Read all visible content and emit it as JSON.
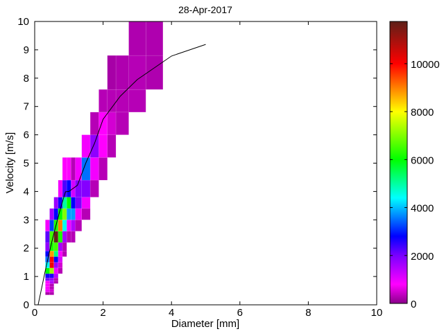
{
  "chart_data": {
    "type": "heatmap",
    "title": "28-Apr-2017",
    "xlabel": "Diameter [mm]",
    "ylabel": "Velocity [m/s]",
    "xlim": [
      0,
      10
    ],
    "ylim": [
      0,
      10
    ],
    "xticks": [
      0,
      2,
      4,
      6,
      8,
      10
    ],
    "yticks": [
      0,
      1,
      2,
      3,
      4,
      5,
      6,
      7,
      8,
      9,
      10
    ],
    "grid": false,
    "colorbar": {
      "location": "right",
      "range": [
        0,
        11760
      ],
      "ticks": [
        0,
        2000,
        4000,
        6000,
        8000,
        10000
      ],
      "colormap_stops": [
        [
          0,
          "#8a008a"
        ],
        [
          800,
          "#ff00ff"
        ],
        [
          2000,
          "#7a00ff"
        ],
        [
          2800,
          "#0000ff"
        ],
        [
          4400,
          "#00ffff"
        ],
        [
          6000,
          "#00ff00"
        ],
        [
          8000,
          "#ffff00"
        ],
        [
          9000,
          "#ff8000"
        ],
        [
          10000,
          "#ff0000"
        ],
        [
          11760,
          "#5e2018"
        ]
      ]
    },
    "diameter_edges": [
      0.312,
      0.437,
      0.562,
      0.687,
      0.812,
      0.937,
      1.062,
      1.187,
      1.375,
      1.625,
      1.875,
      2.125,
      2.375,
      2.75,
      3.25,
      3.75
    ],
    "velocity_edges": [
      0.35,
      0.45,
      0.55,
      0.65,
      0.75,
      0.85,
      0.95,
      1.1,
      1.3,
      1.5,
      1.7,
      1.9,
      2.2,
      2.6,
      3.0,
      3.4,
      3.8,
      4.4,
      5.2,
      6.0,
      6.8,
      7.6,
      8.8,
      10.4
    ],
    "rows": [
      {
        "v": 0.35,
        "d_start": 0.312,
        "counts": [
          200,
          250
        ]
      },
      {
        "v": 0.45,
        "d_start": 0.312,
        "counts": [
          900,
          500
        ]
      },
      {
        "v": 0.55,
        "d_start": 0.312,
        "counts": [
          800,
          300
        ]
      },
      {
        "v": 0.65,
        "d_start": 0.312,
        "counts": [
          800,
          300
        ]
      },
      {
        "v": 0.75,
        "d_start": 0.312,
        "counts": [
          800,
          1500,
          250
        ]
      },
      {
        "v": 0.85,
        "d_start": 0.312,
        "counts": [
          2000,
          1700,
          300
        ]
      },
      {
        "v": 0.95,
        "d_start": 0.312,
        "counts": [
          2700,
          2600,
          1400
        ]
      },
      {
        "v": 1.1,
        "d_start": 0.312,
        "counts": [
          6000,
          7200,
          900,
          300
        ]
      },
      {
        "v": 1.3,
        "d_start": 0.312,
        "counts": [
          4400,
          10200,
          1700,
          500
        ]
      },
      {
        "v": 1.5,
        "d_start": 0.312,
        "counts": [
          3500,
          10000,
          2800,
          1100
        ]
      },
      {
        "v": 1.7,
        "d_start": 0.312,
        "counts": [
          2800,
          8800,
          5200,
          800,
          300
        ]
      },
      {
        "v": 1.9,
        "d_start": 0.312,
        "counts": [
          1800,
          6200,
          6500,
          1600,
          300
        ]
      },
      {
        "v": 2.2,
        "d_start": 0.312,
        "counts": [
          2200,
          6500,
          11700,
          6200,
          1600,
          300,
          300
        ]
      },
      {
        "v": 2.6,
        "d_start": 0.312,
        "counts": [
          900,
          3200,
          6200,
          9000,
          4500,
          900,
          1500,
          300
        ]
      },
      {
        "v": 3.0,
        "d_start": 0.437,
        "counts": [
          1600,
          2800,
          6000,
          7000,
          3800,
          3800,
          900,
          300
        ]
      },
      {
        "v": 3.4,
        "d_start": 0.562,
        "counts": [
          1700,
          2700,
          5000,
          6000,
          2800,
          2000,
          900
        ]
      },
      {
        "v": 3.8,
        "d_start": 0.687,
        "counts": [
          900,
          2300,
          2800,
          1200,
          1900,
          1900,
          300
        ]
      },
      {
        "v": 4.4,
        "d_start": 0.812,
        "counts": [
          800,
          800,
          300,
          900,
          3500,
          900,
          300
        ]
      },
      {
        "v": 5.2,
        "d_start": 1.375,
        "counts": [
          900,
          1800,
          800,
          300
        ]
      },
      {
        "v": 6.0,
        "d_start": 1.625,
        "counts": [
          300,
          800,
          500,
          300
        ]
      },
      {
        "v": 6.8,
        "d_start": 1.875,
        "counts": [
          300,
          300,
          300,
          300
        ]
      },
      {
        "v": 7.6,
        "d_start": 2.125,
        "counts": [
          200,
          250,
          300,
          250
        ]
      },
      {
        "v": 8.8,
        "d_start": 2.75,
        "counts": [
          250,
          250
        ]
      }
    ],
    "fit_line": {
      "x": [
        0.1,
        0.2,
        0.3,
        0.4,
        0.5,
        0.6,
        0.7,
        0.8,
        0.9,
        1.0,
        1.25,
        1.5,
        1.75,
        2.0,
        2.5,
        3.0,
        4.0,
        5.0
      ],
      "y": [
        -0.05,
        0.57,
        1.15,
        1.7,
        2.22,
        2.7,
        3.16,
        3.59,
        3.99,
        4.0,
        4.22,
        5.02,
        5.7,
        6.55,
        7.36,
        7.95,
        8.78,
        9.19
      ]
    }
  }
}
